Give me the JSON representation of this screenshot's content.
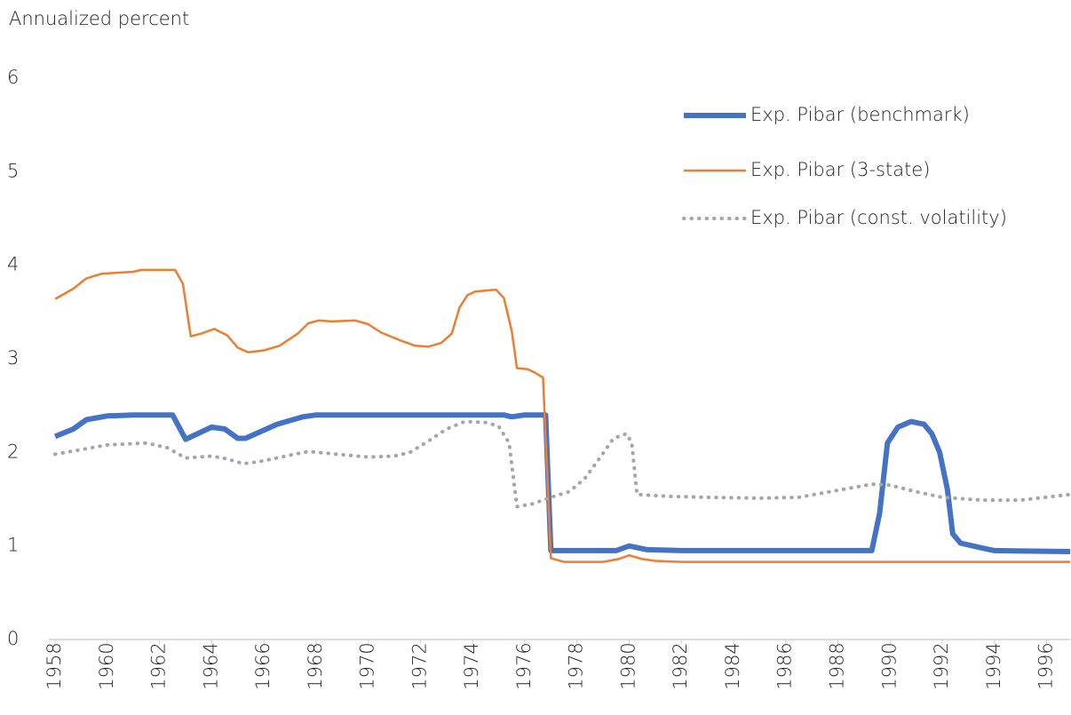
{
  "chart_data": {
    "type": "line",
    "y_label": "Annualized percent",
    "xlim": [
      1957.76,
      1996.9
    ],
    "xticks": [
      1958,
      1960,
      1962,
      1964,
      1966,
      1968,
      1970,
      1972,
      1974,
      1976,
      1978,
      1980,
      1982,
      1984,
      1986,
      1988,
      1990,
      1992,
      1994,
      1996
    ],
    "ylim": [
      0,
      6
    ],
    "yticks": [
      0,
      1,
      2,
      3,
      4,
      5,
      6
    ],
    "grid": false,
    "legend": "upper right",
    "series": [
      {
        "name": "Exp. Pibar (benchmark)",
        "color": "#4472c4",
        "style": "solid",
        "width": 6,
        "x": [
          1958,
          1958.7,
          1959.2,
          1960,
          1961,
          1962.5,
          1963,
          1964,
          1964.5,
          1965,
          1965.3,
          1966.5,
          1967.5,
          1968,
          1975.2,
          1975.5,
          1976,
          1976.8,
          1977.0,
          1979.5,
          1980,
          1980.7,
          1982,
          1989.3,
          1989.6,
          1989.9,
          1990.3,
          1990.8,
          1991.3,
          1991.6,
          1991.9,
          1992.2,
          1992.4,
          1992.7,
          1993.5,
          1994,
          1996.9
        ],
        "values": [
          2.17,
          2.25,
          2.35,
          2.39,
          2.4,
          2.4,
          2.14,
          2.27,
          2.25,
          2.15,
          2.15,
          2.3,
          2.38,
          2.4,
          2.4,
          2.38,
          2.4,
          2.4,
          0.95,
          0.95,
          1.0,
          0.96,
          0.95,
          0.95,
          1.35,
          2.1,
          2.27,
          2.33,
          2.3,
          2.2,
          2.0,
          1.6,
          1.13,
          1.03,
          0.98,
          0.95,
          0.94
        ]
      },
      {
        "name": "Exp. Pibar (3-state)",
        "color": "#ed7d31",
        "style": "solid",
        "width": 2.5,
        "x": [
          1958,
          1958.7,
          1959.2,
          1959.8,
          1961,
          1961.3,
          1962.6,
          1962.9,
          1963.2,
          1963.6,
          1964.1,
          1964.6,
          1965,
          1965.4,
          1966,
          1966.6,
          1967.3,
          1967.7,
          1968.1,
          1968.6,
          1969.5,
          1970,
          1970.5,
          1971.2,
          1971.8,
          1972.3,
          1972.8,
          1973.2,
          1973.5,
          1973.8,
          1974.1,
          1974.9,
          1975.2,
          1975.5,
          1975.7,
          1976.1,
          1976.4,
          1976.7,
          1977.0,
          1977.5,
          1979,
          1979.6,
          1980,
          1980.5,
          1981,
          1982,
          1996.9
        ],
        "values": [
          3.64,
          3.75,
          3.86,
          3.91,
          3.93,
          3.95,
          3.95,
          3.8,
          3.24,
          3.27,
          3.32,
          3.25,
          3.12,
          3.07,
          3.09,
          3.14,
          3.27,
          3.38,
          3.41,
          3.4,
          3.41,
          3.37,
          3.28,
          3.2,
          3.14,
          3.13,
          3.17,
          3.27,
          3.55,
          3.68,
          3.72,
          3.74,
          3.65,
          3.3,
          2.9,
          2.89,
          2.85,
          2.8,
          0.87,
          0.83,
          0.83,
          0.86,
          0.9,
          0.86,
          0.84,
          0.83,
          0.83
        ]
      },
      {
        "name": "Exp. Pibar (const. volatility)",
        "color": "#a5a5a5",
        "style": "dotted",
        "width": 4,
        "x": [
          1958,
          1959,
          1960,
          1961.5,
          1962.3,
          1963,
          1964,
          1964.6,
          1965.2,
          1965.8,
          1967,
          1967.7,
          1968.8,
          1970,
          1971,
          1971.6,
          1972.3,
          1973,
          1973.7,
          1974.5,
          1975,
          1975.4,
          1975.7,
          1976.3,
          1977,
          1977.7,
          1978.3,
          1978.9,
          1979.4,
          1979.9,
          1980.1,
          1980.3,
          1981.5,
          1983,
          1985,
          1986.5,
          1987.5,
          1988.5,
          1989.3,
          1990,
          1991,
          1992,
          1993.5,
          1995,
          1996.9
        ],
        "values": [
          1.98,
          2.03,
          2.08,
          2.1,
          2.05,
          1.94,
          1.96,
          1.93,
          1.88,
          1.9,
          1.97,
          2.01,
          1.98,
          1.95,
          1.96,
          2.0,
          2.12,
          2.25,
          2.33,
          2.32,
          2.28,
          2.1,
          1.42,
          1.45,
          1.52,
          1.58,
          1.72,
          1.95,
          2.15,
          2.2,
          2.1,
          1.55,
          1.53,
          1.52,
          1.51,
          1.52,
          1.57,
          1.62,
          1.66,
          1.65,
          1.58,
          1.52,
          1.49,
          1.49,
          1.55
        ]
      }
    ]
  }
}
